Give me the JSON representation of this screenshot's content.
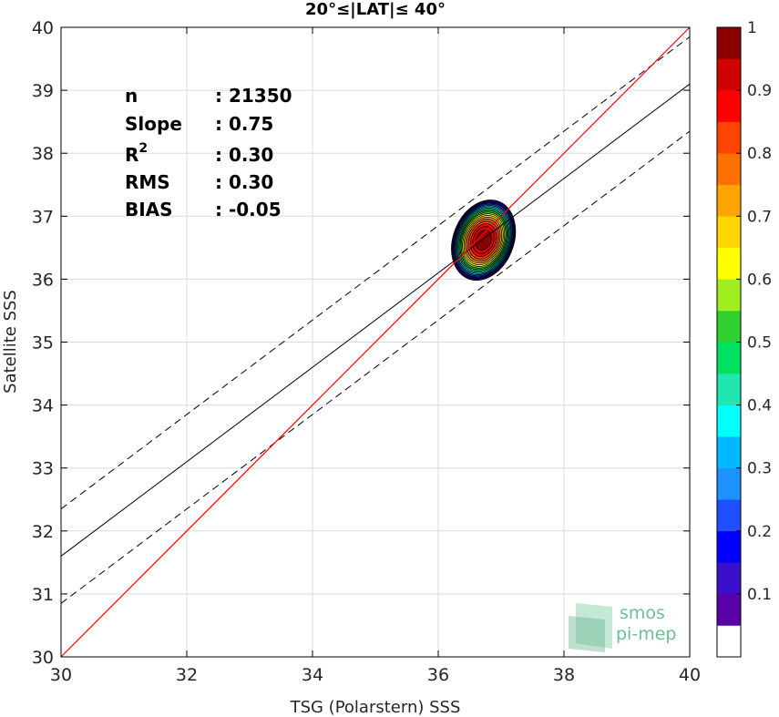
{
  "chart_data": {
    "type": "scatter",
    "title": "20°≤|LAT|≤ 40°",
    "xlabel": "TSG (Polarstern) SSS",
    "ylabel": "Satellite SSS",
    "xlim": [
      30,
      40
    ],
    "ylim": [
      30,
      40
    ],
    "xticks": [
      "30",
      "32",
      "34",
      "36",
      "38",
      "40"
    ],
    "yticks": [
      "30",
      "31",
      "32",
      "33",
      "34",
      "35",
      "36",
      "37",
      "38",
      "39",
      "40"
    ],
    "grid": true,
    "stats": [
      {
        "label": "n",
        "value": ": 21350"
      },
      {
        "label": "Slope",
        "value": ": 0.75"
      },
      {
        "label": "R",
        "sup": "2",
        "value": ": 0.30"
      },
      {
        "label": "RMS",
        "value": ": 0.30"
      },
      {
        "label": "BIAS",
        "value": ": -0.05"
      }
    ],
    "fit": {
      "slope": 0.75,
      "intercept": 9.1,
      "bound_offset": 0.75
    },
    "identity_line": {
      "slope": 1,
      "intercept": 0
    },
    "density": {
      "center": [
        36.72,
        36.62
      ],
      "semi_axes": [
        0.48,
        0.66
      ],
      "rotation_deg": 22
    },
    "colorbar": {
      "range": [
        0,
        1
      ],
      "ticks": [
        "0.1",
        "0.2",
        "0.3",
        "0.4",
        "0.5",
        "0.6",
        "0.7",
        "0.8",
        "0.9",
        "1"
      ],
      "colors": [
        "#ffffff",
        "#5a00a8",
        "#3a10cc",
        "#0000ff",
        "#1f4fff",
        "#1e90ff",
        "#00b8ff",
        "#00ffff",
        "#20e6b0",
        "#00e060",
        "#2fd02f",
        "#a0ee20",
        "#ffff00",
        "#ffd700",
        "#ffa500",
        "#ff7000",
        "#ff4500",
        "#ff0000",
        "#d00000",
        "#8b0000"
      ]
    },
    "colors": {
      "fit": "#000000",
      "identity": "#ff0000",
      "grid": "#dcdcdc"
    }
  },
  "logo": {
    "line1": "smos",
    "line2": "pi-mep"
  }
}
